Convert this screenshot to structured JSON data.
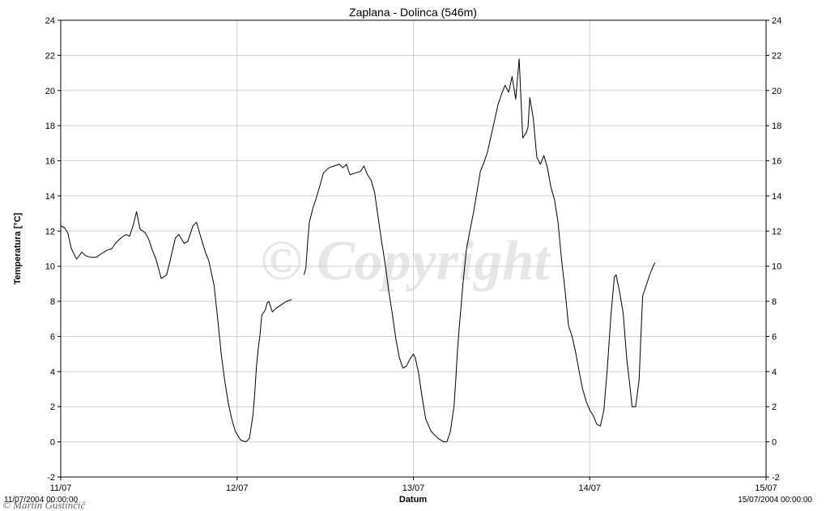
{
  "watermark": "© Copyright",
  "credit": "© Martin Gustinčič",
  "start_stamp": "11/07/2004 00:00:00",
  "end_stamp": "15/07/2004 00:00:00",
  "colors": {
    "line": "#000000",
    "grid": "#d0d0d0",
    "axis": "#000000",
    "watermark": "#e6e6e6",
    "background": "#ffffff"
  },
  "chart_data": {
    "type": "line",
    "title": "Zaplana - Dolinca (546m)",
    "xlabel": "Datum",
    "ylabel": "Temperatura [°C]",
    "x_unit": "days since 11/07/2004 00:00",
    "xlim": [
      0,
      4
    ],
    "ylim": [
      -2,
      24
    ],
    "x_ticks": [
      0,
      1,
      2,
      3,
      4
    ],
    "x_tick_labels": [
      "11/07",
      "12/07",
      "13/07",
      "14/07",
      "15/07"
    ],
    "y_ticks": [
      -2,
      0,
      2,
      4,
      6,
      8,
      10,
      12,
      14,
      16,
      18,
      20,
      22,
      24
    ],
    "grid": true,
    "right_axis_mirror": true,
    "series": [
      {
        "segments": [
          [
            [
              0.0,
              12.3
            ],
            [
              0.02,
              12.2
            ],
            [
              0.04,
              11.9
            ],
            [
              0.06,
              11.0
            ],
            [
              0.09,
              10.4
            ],
            [
              0.12,
              10.8
            ],
            [
              0.14,
              10.6
            ],
            [
              0.17,
              10.5
            ],
            [
              0.2,
              10.5
            ],
            [
              0.23,
              10.7
            ],
            [
              0.26,
              10.9
            ],
            [
              0.29,
              11.0
            ],
            [
              0.31,
              11.3
            ],
            [
              0.34,
              11.6
            ],
            [
              0.37,
              11.8
            ],
            [
              0.39,
              11.7
            ],
            [
              0.41,
              12.3
            ],
            [
              0.43,
              13.1
            ],
            [
              0.45,
              12.1
            ],
            [
              0.48,
              11.9
            ],
            [
              0.5,
              11.5
            ],
            [
              0.52,
              10.9
            ],
            [
              0.54,
              10.4
            ],
            [
              0.57,
              9.3
            ],
            [
              0.6,
              9.5
            ],
            [
              0.62,
              10.3
            ],
            [
              0.65,
              11.6
            ],
            [
              0.67,
              11.8
            ],
            [
              0.7,
              11.3
            ],
            [
              0.72,
              11.4
            ],
            [
              0.75,
              12.3
            ],
            [
              0.77,
              12.5
            ],
            [
              0.79,
              11.8
            ],
            [
              0.82,
              10.8
            ],
            [
              0.84,
              10.3
            ],
            [
              0.87,
              8.9
            ],
            [
              0.89,
              7.0
            ],
            [
              0.91,
              5.0
            ],
            [
              0.93,
              3.5
            ],
            [
              0.95,
              2.2
            ],
            [
              0.97,
              1.3
            ],
            [
              0.99,
              0.6
            ],
            [
              1.02,
              0.1
            ],
            [
              1.05,
              0.0
            ],
            [
              1.07,
              0.2
            ],
            [
              1.09,
              1.5
            ],
            [
              1.1,
              2.7
            ],
            [
              1.11,
              4.3
            ],
            [
              1.12,
              5.3
            ],
            [
              1.13,
              6.1
            ],
            [
              1.14,
              7.2
            ],
            [
              1.16,
              7.5
            ],
            [
              1.17,
              7.9
            ],
            [
              1.18,
              8.0
            ],
            [
              1.2,
              7.4
            ],
            [
              1.22,
              7.6
            ],
            [
              1.25,
              7.8
            ],
            [
              1.28,
              8.0
            ],
            [
              1.31,
              8.1
            ]
          ],
          [
            [
              1.38,
              9.5
            ],
            [
              1.39,
              9.9
            ],
            [
              1.4,
              11.3
            ],
            [
              1.41,
              12.5
            ],
            [
              1.43,
              13.3
            ],
            [
              1.45,
              13.9
            ],
            [
              1.47,
              14.6
            ],
            [
              1.49,
              15.3
            ],
            [
              1.52,
              15.6
            ],
            [
              1.55,
              15.7
            ],
            [
              1.58,
              15.8
            ],
            [
              1.6,
              15.6
            ],
            [
              1.62,
              15.8
            ],
            [
              1.64,
              15.2
            ],
            [
              1.67,
              15.3
            ],
            [
              1.7,
              15.4
            ],
            [
              1.72,
              15.7
            ],
            [
              1.74,
              15.2
            ],
            [
              1.76,
              14.9
            ],
            [
              1.78,
              14.2
            ],
            [
              1.8,
              12.8
            ],
            [
              1.82,
              11.4
            ],
            [
              1.84,
              10.1
            ],
            [
              1.86,
              8.6
            ],
            [
              1.88,
              7.3
            ],
            [
              1.9,
              5.9
            ],
            [
              1.92,
              4.8
            ],
            [
              1.94,
              4.2
            ],
            [
              1.96,
              4.3
            ],
            [
              1.98,
              4.7
            ],
            [
              2.0,
              5.0
            ],
            [
              2.01,
              4.8
            ],
            [
              2.03,
              3.9
            ],
            [
              2.05,
              2.5
            ],
            [
              2.07,
              1.3
            ],
            [
              2.1,
              0.6
            ],
            [
              2.14,
              0.2
            ],
            [
              2.17,
              0.0
            ],
            [
              2.19,
              0.0
            ],
            [
              2.21,
              0.6
            ],
            [
              2.23,
              2.0
            ],
            [
              2.24,
              3.5
            ],
            [
              2.25,
              5.2
            ],
            [
              2.26,
              6.5
            ],
            [
              2.28,
              8.9
            ],
            [
              2.3,
              10.9
            ],
            [
              2.32,
              12.0
            ],
            [
              2.34,
              13.0
            ],
            [
              2.36,
              14.2
            ],
            [
              2.38,
              15.4
            ],
            [
              2.4,
              15.9
            ],
            [
              2.42,
              16.5
            ],
            [
              2.44,
              17.4
            ],
            [
              2.46,
              18.3
            ],
            [
              2.48,
              19.2
            ],
            [
              2.5,
              19.8
            ],
            [
              2.52,
              20.3
            ],
            [
              2.54,
              19.9
            ],
            [
              2.56,
              20.8
            ],
            [
              2.58,
              19.5
            ],
            [
              2.6,
              21.8
            ],
            [
              2.62,
              17.3
            ],
            [
              2.64,
              17.6
            ],
            [
              2.65,
              17.9
            ],
            [
              2.66,
              19.6
            ],
            [
              2.68,
              18.4
            ],
            [
              2.7,
              16.2
            ],
            [
              2.72,
              15.8
            ],
            [
              2.74,
              16.3
            ],
            [
              2.76,
              15.6
            ],
            [
              2.78,
              14.5
            ],
            [
              2.8,
              13.8
            ],
            [
              2.82,
              12.5
            ],
            [
              2.84,
              10.4
            ],
            [
              2.86,
              8.6
            ],
            [
              2.88,
              6.6
            ],
            [
              2.9,
              6.0
            ],
            [
              2.92,
              5.1
            ],
            [
              2.94,
              4.0
            ],
            [
              2.96,
              3.0
            ],
            [
              2.98,
              2.3
            ],
            [
              3.0,
              1.8
            ],
            [
              3.02,
              1.5
            ],
            [
              3.04,
              1.0
            ],
            [
              3.06,
              0.9
            ],
            [
              3.08,
              1.8
            ],
            [
              3.1,
              4.2
            ],
            [
              3.12,
              7.2
            ],
            [
              3.14,
              9.4
            ],
            [
              3.15,
              9.5
            ],
            [
              3.17,
              8.5
            ],
            [
              3.19,
              7.3
            ],
            [
              3.21,
              4.7
            ],
            [
              3.23,
              3.0
            ],
            [
              3.24,
              2.0
            ],
            [
              3.26,
              2.0
            ],
            [
              3.28,
              3.5
            ],
            [
              3.29,
              6.0
            ],
            [
              3.3,
              8.3
            ],
            [
              3.32,
              8.9
            ],
            [
              3.34,
              9.5
            ],
            [
              3.36,
              10.0
            ],
            [
              3.37,
              10.2
            ]
          ]
        ]
      }
    ]
  }
}
